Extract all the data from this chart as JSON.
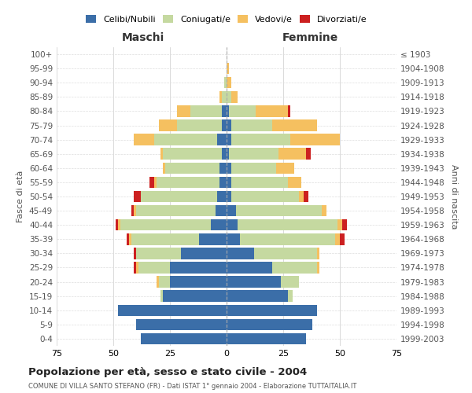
{
  "age_groups": [
    "0-4",
    "5-9",
    "10-14",
    "15-19",
    "20-24",
    "25-29",
    "30-34",
    "35-39",
    "40-44",
    "45-49",
    "50-54",
    "55-59",
    "60-64",
    "65-69",
    "70-74",
    "75-79",
    "80-84",
    "85-89",
    "90-94",
    "95-99",
    "100+"
  ],
  "birth_years": [
    "1999-2003",
    "1994-1998",
    "1989-1993",
    "1984-1988",
    "1979-1983",
    "1974-1978",
    "1969-1973",
    "1964-1968",
    "1959-1963",
    "1954-1958",
    "1949-1953",
    "1944-1948",
    "1939-1943",
    "1934-1938",
    "1929-1933",
    "1924-1928",
    "1919-1923",
    "1914-1918",
    "1909-1913",
    "1904-1908",
    "≤ 1903"
  ],
  "male": {
    "celibe": [
      38,
      40,
      48,
      28,
      25,
      25,
      20,
      12,
      7,
      5,
      4,
      3,
      3,
      2,
      4,
      2,
      2,
      0,
      0,
      0,
      0
    ],
    "coniugato": [
      0,
      0,
      0,
      1,
      5,
      14,
      20,
      30,
      40,
      35,
      34,
      28,
      24,
      26,
      28,
      20,
      14,
      2,
      1,
      0,
      0
    ],
    "vedovo": [
      0,
      0,
      0,
      0,
      1,
      1,
      0,
      1,
      1,
      1,
      0,
      1,
      1,
      1,
      9,
      8,
      6,
      1,
      0,
      0,
      0
    ],
    "divorziato": [
      0,
      0,
      0,
      0,
      0,
      1,
      1,
      1,
      1,
      1,
      3,
      2,
      0,
      0,
      0,
      0,
      0,
      0,
      0,
      0,
      0
    ]
  },
  "female": {
    "nubile": [
      35,
      38,
      40,
      27,
      24,
      20,
      12,
      6,
      5,
      4,
      2,
      2,
      2,
      1,
      2,
      2,
      1,
      0,
      0,
      0,
      0
    ],
    "coniugata": [
      0,
      0,
      0,
      2,
      8,
      20,
      28,
      42,
      44,
      38,
      30,
      25,
      20,
      22,
      26,
      18,
      12,
      2,
      0,
      0,
      0
    ],
    "vedova": [
      0,
      0,
      0,
      0,
      0,
      1,
      1,
      2,
      2,
      2,
      2,
      6,
      8,
      12,
      22,
      20,
      14,
      3,
      2,
      1,
      0
    ],
    "divorziata": [
      0,
      0,
      0,
      0,
      0,
      0,
      0,
      2,
      2,
      0,
      2,
      0,
      0,
      2,
      0,
      0,
      1,
      0,
      0,
      0,
      0
    ]
  },
  "colors": {
    "celibe": "#3B6EA8",
    "coniugato": "#C5D9A0",
    "vedovo": "#F5C060",
    "divorziato": "#CC2020"
  },
  "xlim": 75,
  "title": "Popolazione per età, sesso e stato civile - 2004",
  "subtitle": "COMUNE DI VILLA SANTO STEFANO (FR) - Dati ISTAT 1° gennaio 2004 - Elaborazione TUTTAITALIA.IT",
  "ylabel_left": "Fasce di età",
  "ylabel_right": "Anni di nascita",
  "xlabel_left": "Maschi",
  "xlabel_right": "Femmine"
}
